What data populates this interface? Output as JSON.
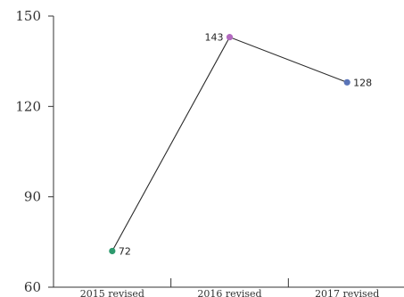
{
  "chart_data": {
    "type": "line",
    "title": "",
    "xlabel": "",
    "ylabel": "",
    "categories": [
      "2015 revised",
      "2016 revised",
      "2017 revised"
    ],
    "values": [
      72,
      143,
      128
    ],
    "point_colors": [
      "#2e9a6e",
      "#b36ac0",
      "#5a74b8"
    ],
    "data_labels": [
      "72",
      "143",
      "128"
    ],
    "y_ticks": [
      "60",
      "90",
      "120",
      "150"
    ],
    "ylim": [
      60,
      150
    ],
    "grid": false,
    "legend": "none"
  }
}
